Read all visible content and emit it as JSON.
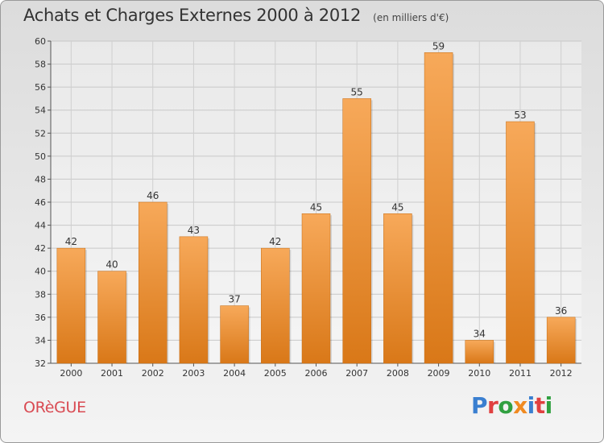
{
  "header": {
    "title": "Achats et Charges Externes 2000 à 2012",
    "unit": "(en milliers d'€)"
  },
  "footer": {
    "commune": "ORèGUE",
    "logo": "Proxiti"
  },
  "colors": {
    "bar_light": "#f7a95a",
    "bar_dark": "#d97818",
    "commune": "#d94a52",
    "logo": [
      "#3a7fd0",
      "#e04040",
      "#30a040",
      "#f08a20",
      "#3a7fd0",
      "#e04040",
      "#30a040"
    ]
  },
  "chart_data": {
    "type": "bar",
    "title": "Achats et Charges Externes 2000 à 2012",
    "subtitle": "(en milliers d'€)",
    "categories": [
      "2000",
      "2001",
      "2002",
      "2003",
      "2004",
      "2005",
      "2006",
      "2007",
      "2008",
      "2009",
      "2010",
      "2011",
      "2012"
    ],
    "values": [
      42,
      40,
      46,
      43,
      37,
      42,
      45,
      55,
      45,
      59,
      34,
      53,
      36
    ],
    "ylim": [
      32,
      60
    ],
    "yticks": [
      32,
      34,
      36,
      38,
      40,
      42,
      44,
      46,
      48,
      50,
      52,
      54,
      56,
      58,
      60
    ],
    "grid": true,
    "data_labels": true
  }
}
